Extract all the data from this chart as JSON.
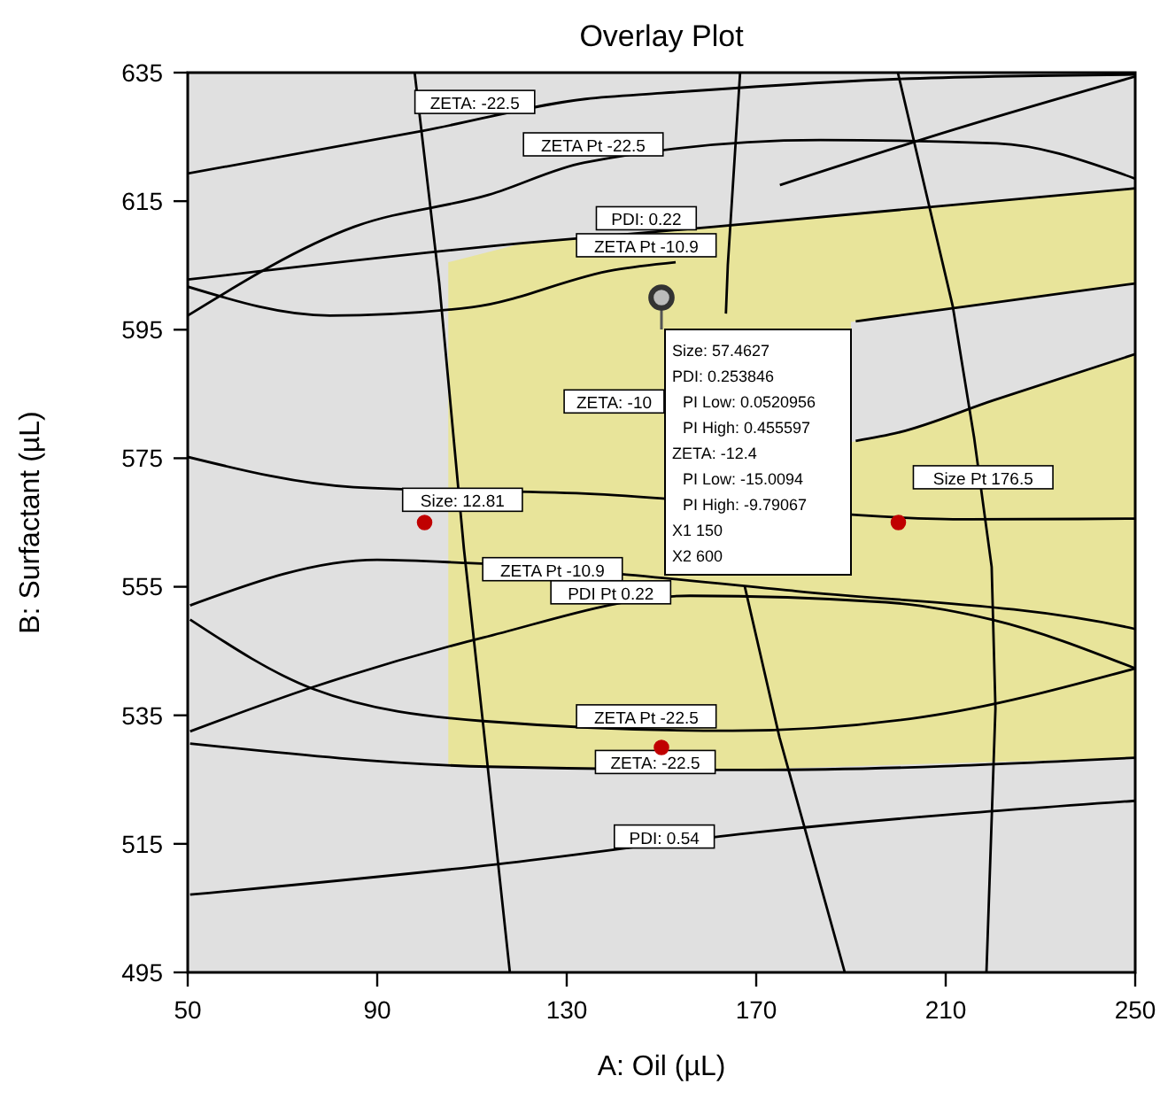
{
  "chart_data": {
    "type": "line",
    "title": "Overlay Plot",
    "xlabel": "A: Oil (µL)",
    "ylabel": "B: Surfactant (µL)",
    "xlim": [
      50,
      250
    ],
    "xticks": [
      50,
      90,
      130,
      170,
      210,
      250
    ],
    "ylim": [
      495,
      635
    ],
    "yticks": [
      495,
      515,
      535,
      555,
      575,
      595,
      615,
      635
    ],
    "series": [
      {
        "color": "#000000",
        "x": [
          50,
          100,
          134,
          150,
          200,
          250
        ],
        "values": [
          619.3,
          626,
          630.9,
          631.8,
          634,
          634.7
        ]
      },
      {
        "color": "#000000",
        "x": [
          50,
          85.1,
          113.6,
          133.7,
          183.5,
          220.8,
          247,
          250
        ],
        "values": [
          597.2,
          611,
          616,
          621,
          624.5,
          624,
          619.3,
          618.5
        ]
      },
      {
        "color": "#000000",
        "x": [
          50,
          121,
          161,
          250
        ],
        "values": [
          602.8,
          608.5,
          611,
          617
        ]
      },
      {
        "color": "#000000",
        "x": [
          50,
          80,
          110,
          140,
          153
        ],
        "values": [
          601.7,
          597.2,
          598.5,
          604.3,
          605.5
        ]
      },
      {
        "color": "#000000",
        "x": [
          191,
          200,
          220,
          250
        ],
        "values": [
          596.3,
          597.2,
          599.2,
          602.2
        ]
      },
      {
        "color": "#000000",
        "x": [
          191,
          200,
          220,
          250
        ],
        "values": [
          577.7,
          579,
          584,
          591.2
        ]
      },
      {
        "color": "#000000",
        "x": [
          175,
          212,
          250
        ],
        "values": [
          617.5,
          626.2,
          634.4
        ]
      },
      {
        "color": "#000000",
        "x": [
          50,
          85,
          134,
          215,
          250
        ],
        "values": [
          575.2,
          570.5,
          569.5,
          565.5,
          565.6
        ]
      },
      {
        "color": "#000000",
        "x": [
          50.5,
          90,
          108.7,
          178.6,
          249.6,
          250
        ],
        "values": [
          552.1,
          559.2,
          558.7,
          554.3,
          548.5,
          548.4
        ]
      },
      {
        "color": "#000000",
        "x": [
          50.5,
          76.5,
          112.4,
          156,
          197.3,
          219.7,
          250
        ],
        "values": [
          532.5,
          539.4,
          547.1,
          553.6,
          552.6,
          549.9,
          542.3
        ]
      },
      {
        "color": "#000000",
        "x": [
          50.5,
          76.5,
          112.4,
          165,
          204.8,
          250
        ],
        "values": [
          549.9,
          539.1,
          534.1,
          532.6,
          534.7,
          542.3
        ]
      },
      {
        "color": "#000000",
        "x": [
          50.5,
          113.6,
          170,
          250
        ],
        "values": [
          530.6,
          527,
          526.5,
          528.4
        ]
      },
      {
        "color": "#000000",
        "x": [
          50.5,
          115,
          170,
          250
        ],
        "values": [
          507.1,
          511.8,
          516.8,
          521.7
        ]
      },
      {
        "color": "#000000",
        "x": [
          97.9,
          103.1,
          108.3,
          112.4,
          118
        ],
        "values": [
          635,
          602.2,
          560.9,
          533.3,
          495
        ]
      },
      {
        "color": "#000000",
        "x": [
          166.6,
          164,
          163.6
        ],
        "values": [
          635,
          605,
          597.5
        ]
      },
      {
        "color": "#000000",
        "x": [
          167.6,
          174.9,
          188.7
        ],
        "values": [
          555,
          531.6,
          495
        ]
      },
      {
        "color": "#000000",
        "x": [
          199.9,
          211.5,
          216,
          219.7,
          220.5,
          218.6
        ],
        "values": [
          635,
          598.6,
          578.2,
          558.1,
          536.1,
          495
        ]
      },
      {
        "type": "scatter",
        "color": "#c00000",
        "marker": "circle",
        "x": [
          100,
          200,
          150
        ],
        "values": [
          565,
          565,
          530
        ]
      },
      {
        "type": "scatter",
        "color": "#333333",
        "marker": "circle",
        "x": [
          150
        ],
        "values": [
          600
        ]
      }
    ],
    "annotations": [
      "ZETA: -22.5",
      "ZETA Pt -22.5",
      "PDI: 0.22",
      "ZETA Pt -10.9",
      "ZETA: -10",
      "Size: 12.81",
      "Size Pt 176.5",
      "ZETA Pt -10.9",
      "PDI Pt 0.22",
      "ZETA Pt -22.5",
      "ZETA: -22.5",
      "PDI: 0.54",
      "Size: 57.4627",
      "PDI: 0.253846",
      "PI Low: 0.0520956",
      "PI High: 0.455597",
      "ZETA: -12.4",
      "PI Low: -15.0094",
      "PI High: -9.79067",
      "X1 150",
      "X2 600"
    ]
  }
}
